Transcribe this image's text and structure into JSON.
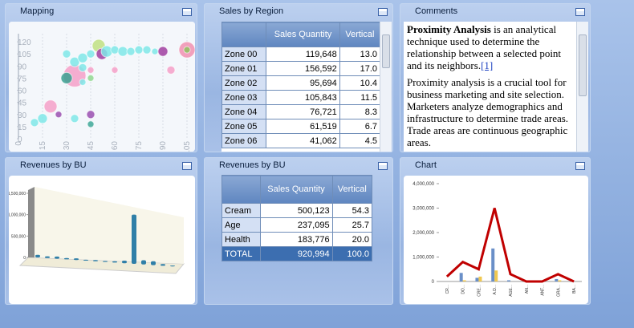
{
  "panels": [
    {
      "title": "Mapping",
      "chart": {
        "type": "scatter",
        "xlim": [
          0,
          110
        ],
        "ylim": [
          0,
          130
        ],
        "xticks": [
          0,
          15,
          30,
          45,
          60,
          75,
          90,
          105
        ],
        "yticks": [
          0,
          15,
          30,
          45,
          60,
          75,
          90,
          105,
          120
        ],
        "grid": true,
        "points": [
          {
            "x": 10,
            "y": 20,
            "size": 5,
            "color": "#7fe8e8"
          },
          {
            "x": 15,
            "y": 25,
            "size": 6,
            "color": "#7fe8e8"
          },
          {
            "x": 20,
            "y": 40,
            "size": 8,
            "color": "#f5a0c8"
          },
          {
            "x": 25,
            "y": 30,
            "size": 4,
            "color": "#9a50b0"
          },
          {
            "x": 35,
            "y": 25,
            "size": 5,
            "color": "#7fe8e8"
          },
          {
            "x": 45,
            "y": 30,
            "size": 5,
            "color": "#9a50b0"
          },
          {
            "x": 45,
            "y": 18,
            "size": 4,
            "color": "#40a898"
          },
          {
            "x": 35,
            "y": 78,
            "size": 14,
            "color": "#f5a0c8"
          },
          {
            "x": 30,
            "y": 75,
            "size": 7,
            "color": "#3aa090"
          },
          {
            "x": 40,
            "y": 70,
            "size": 4,
            "color": "#7fe8e8"
          },
          {
            "x": 45,
            "y": 75,
            "size": 4,
            "color": "#90d890"
          },
          {
            "x": 45,
            "y": 85,
            "size": 4,
            "color": "#f5a0c8"
          },
          {
            "x": 60,
            "y": 85,
            "size": 4,
            "color": "#f5a0c8"
          },
          {
            "x": 95,
            "y": 85,
            "size": 5,
            "color": "#f5a0c8"
          },
          {
            "x": 40,
            "y": 88,
            "size": 5,
            "color": "#7fe8e8"
          },
          {
            "x": 35,
            "y": 95,
            "size": 6,
            "color": "#7fe8e8"
          },
          {
            "x": 30,
            "y": 105,
            "size": 5,
            "color": "#7fe8e8"
          },
          {
            "x": 40,
            "y": 100,
            "size": 6,
            "color": "#7fe8e8"
          },
          {
            "x": 45,
            "y": 105,
            "size": 5,
            "color": "#7fe8e8"
          },
          {
            "x": 50,
            "y": 115,
            "size": 8,
            "color": "#c0e080"
          },
          {
            "x": 52,
            "y": 105,
            "size": 7,
            "color": "#a040a0"
          },
          {
            "x": 55,
            "y": 108,
            "size": 7,
            "color": "#7fe8e8"
          },
          {
            "x": 60,
            "y": 110,
            "size": 5,
            "color": "#7fe8e8"
          },
          {
            "x": 65,
            "y": 108,
            "size": 6,
            "color": "#7fe8e8"
          },
          {
            "x": 70,
            "y": 108,
            "size": 5,
            "color": "#7fe8e8"
          },
          {
            "x": 75,
            "y": 110,
            "size": 5,
            "color": "#7fe8e8"
          },
          {
            "x": 80,
            "y": 110,
            "size": 5,
            "color": "#7fe8e8"
          },
          {
            "x": 85,
            "y": 108,
            "size": 4,
            "color": "#7fe8e8"
          },
          {
            "x": 90,
            "y": 108,
            "size": 6,
            "color": "#a040a0"
          },
          {
            "x": 105,
            "y": 110,
            "size": 10,
            "color": "#f090b0"
          },
          {
            "x": 105,
            "y": 110,
            "size": 4,
            "color": "#90c060"
          }
        ]
      }
    },
    {
      "title": "Sales by Region",
      "table": {
        "columns": [
          "Sales Quantity",
          "Vertical"
        ],
        "rows": [
          [
            "Zone 00",
            "119,648",
            "13.0"
          ],
          [
            "Zone 01",
            "156,592",
            "17.0"
          ],
          [
            "Zone 02",
            "95,694",
            "10.4"
          ],
          [
            "Zone 03",
            "105,843",
            "11.5"
          ],
          [
            "Zone 04",
            "76,721",
            "8.3"
          ],
          [
            "Zone 05",
            "61,519",
            "6.7"
          ],
          [
            "Zone 06",
            "41,062",
            "4.5"
          ]
        ]
      }
    },
    {
      "title": "Comments",
      "paragraphs": [
        {
          "bold": "Proximity Analysis",
          "text": " is an analytical technique used to determine the relationship between a selected point and its neighbors.",
          "link": "[1]"
        },
        {
          "text": "Proximity analysis is a crucial tool for business marketing and site selection. Marketers analyze demographics and infrastructure to determine trade areas. Trade areas are continuous geographic areas."
        }
      ]
    },
    {
      "title": "Revenues by BU",
      "chart": {
        "type": "bar3d",
        "color": "#2f7fa8",
        "ylim": [
          0,
          1500000
        ],
        "yticks": [
          0,
          {
            "value": 500000,
            "label": "500,000"
          },
          {
            "value": 1000000,
            "label": "1,000,000"
          },
          {
            "value": 1500000,
            "label": "1,500,000"
          }
        ],
        "values": [
          60000,
          40000,
          50000,
          30000,
          40000,
          20000,
          30000,
          20000,
          30000,
          60000,
          1150000,
          100000,
          90000,
          40000,
          20000
        ]
      }
    },
    {
      "title": "Revenues by BU",
      "table": {
        "columns": [
          "Sales Quantity",
          "Vertical"
        ],
        "rows": [
          [
            "Cream",
            "500,123",
            "54.3"
          ],
          [
            "Age",
            "237,095",
            "25.7"
          ],
          [
            "Health",
            "183,776",
            "20.0"
          ]
        ],
        "total": [
          "TOTAL",
          "920,994",
          "100.0"
        ]
      }
    },
    {
      "title": "Chart",
      "chart": {
        "type": "combo",
        "ylim": [
          0,
          4000000
        ],
        "yticks": [
          0,
          {
            "value": 1000000,
            "label": "1,000,000"
          },
          {
            "value": 2000000,
            "label": "2,000,000"
          },
          {
            "value": 3000000,
            "label": "3,000,000"
          },
          {
            "value": 4000000,
            "label": "4,000,000"
          }
        ],
        "categories": [
          "CR...",
          "DO...",
          "CRE...",
          "A.D...",
          "AGE...",
          "AN...",
          "ANT...",
          "GRA...",
          "BA..."
        ],
        "series": [
          {
            "kind": "bar",
            "color": "#6a8fc8",
            "values": [
              0,
              350000,
              150000,
              1350000,
              50000,
              0,
              0,
              100000,
              0
            ]
          },
          {
            "kind": "bar",
            "color": "#f0c850",
            "values": [
              0,
              50000,
              200000,
              450000,
              0,
              0,
              0,
              50000,
              0
            ]
          },
          {
            "kind": "line",
            "color": "#c00000",
            "values": [
              200000,
              800000,
              500000,
              3000000,
              300000,
              0,
              0,
              300000,
              0
            ]
          }
        ]
      }
    }
  ]
}
